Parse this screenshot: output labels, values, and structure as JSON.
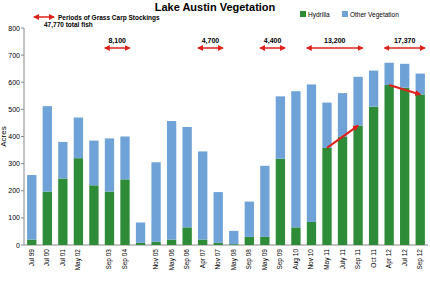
{
  "chart_data": {
    "type": "bar",
    "title": "Lake Austin Vegetation",
    "y_label": "Acres",
    "stacked": true,
    "legend": "top-right",
    "categories": [
      "Jul 99",
      "Jul 00",
      "Jul 01",
      "May 02",
      null,
      "Sep 03",
      "Sep 04",
      null,
      "Nov 05",
      "May 06",
      "Sep 06",
      "Apr 07",
      "Nov 07",
      "May 08",
      "Sep 08",
      "May 09",
      "Sep 09",
      "Aug 10",
      "Nov 10",
      "May 11",
      "July 11",
      "Sep 11",
      "Oct 11",
      "Apr 12",
      "Jul 12",
      "Sep 12"
    ],
    "series": [
      {
        "name": "Hydrilla",
        "color": "#2e8b37",
        "values": [
          20,
          197,
          245,
          320,
          220,
          197,
          242,
          8,
          12,
          20,
          65,
          20,
          8,
          3,
          30,
          30,
          318,
          65,
          85,
          358,
          400,
          440,
          510,
          590,
          580,
          555
        ]
      },
      {
        "name": "Other Vegetation",
        "color": "#6fa3d8",
        "values": [
          238,
          315,
          135,
          150,
          165,
          196,
          158,
          75,
          293,
          437,
          370,
          325,
          187,
          49,
          130,
          262,
          230,
          502,
          507,
          167,
          160,
          180,
          133,
          82,
          88,
          77
        ]
      }
    ],
    "ylim": [
      0,
      800
    ],
    "yticks": [
      0,
      100,
      200,
      300,
      400,
      500,
      600,
      700,
      800
    ],
    "grid": false,
    "stocking_label": "Periods of Grass Carp Stockings",
    "stocking_total": "47,770 total fish",
    "annotations": [
      {
        "text": "8,100",
        "from": "Sep 03",
        "to": "Sep 04"
      },
      {
        "text": "4,700",
        "from": "Apr 07",
        "to": "Nov 07"
      },
      {
        "text": "4,400",
        "from": "May 09",
        "to": "Sep 09"
      },
      {
        "text": "13,200",
        "from": "Nov 10",
        "to": "Sep 11"
      },
      {
        "text": "17,370",
        "from": "Apr 12",
        "to": "Sep 12"
      }
    ]
  }
}
